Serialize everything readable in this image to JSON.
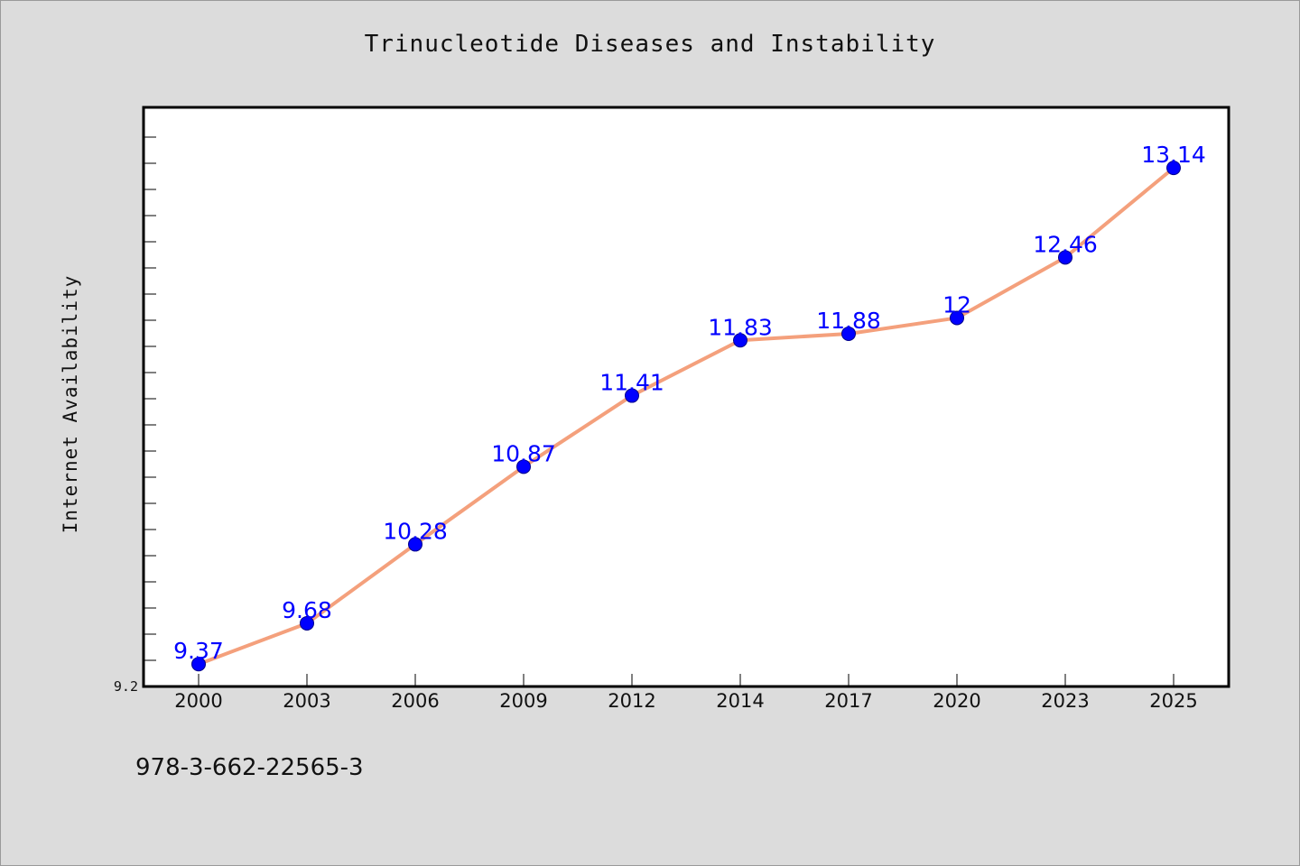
{
  "chart_data": {
    "type": "line",
    "title": "Trinucleotide Diseases and Instability",
    "xlabel": "",
    "ylabel": "Internet Availability",
    "categories": [
      "2000",
      "2003",
      "2006",
      "2009",
      "2012",
      "2014",
      "2017",
      "2020",
      "2023",
      "2025"
    ],
    "series": [
      {
        "values": [
          9.37,
          9.68,
          10.28,
          10.87,
          11.41,
          11.83,
          11.88,
          12,
          12.46,
          13.14
        ]
      }
    ],
    "ylim": [
      9.2,
      13.6
    ],
    "ytick_labels": [
      "9.2"
    ],
    "data_labels": [
      "9.37",
      "9.68",
      "10.28",
      "10.87",
      "11.41",
      "11.83",
      "11.88",
      "12",
      "12.46",
      "13.14"
    ],
    "line_color": "#f4a07c",
    "marker_color": "#0000ff",
    "label_color": "#0000ff",
    "grid": false
  },
  "footer_text": "978-3-662-22565-3"
}
